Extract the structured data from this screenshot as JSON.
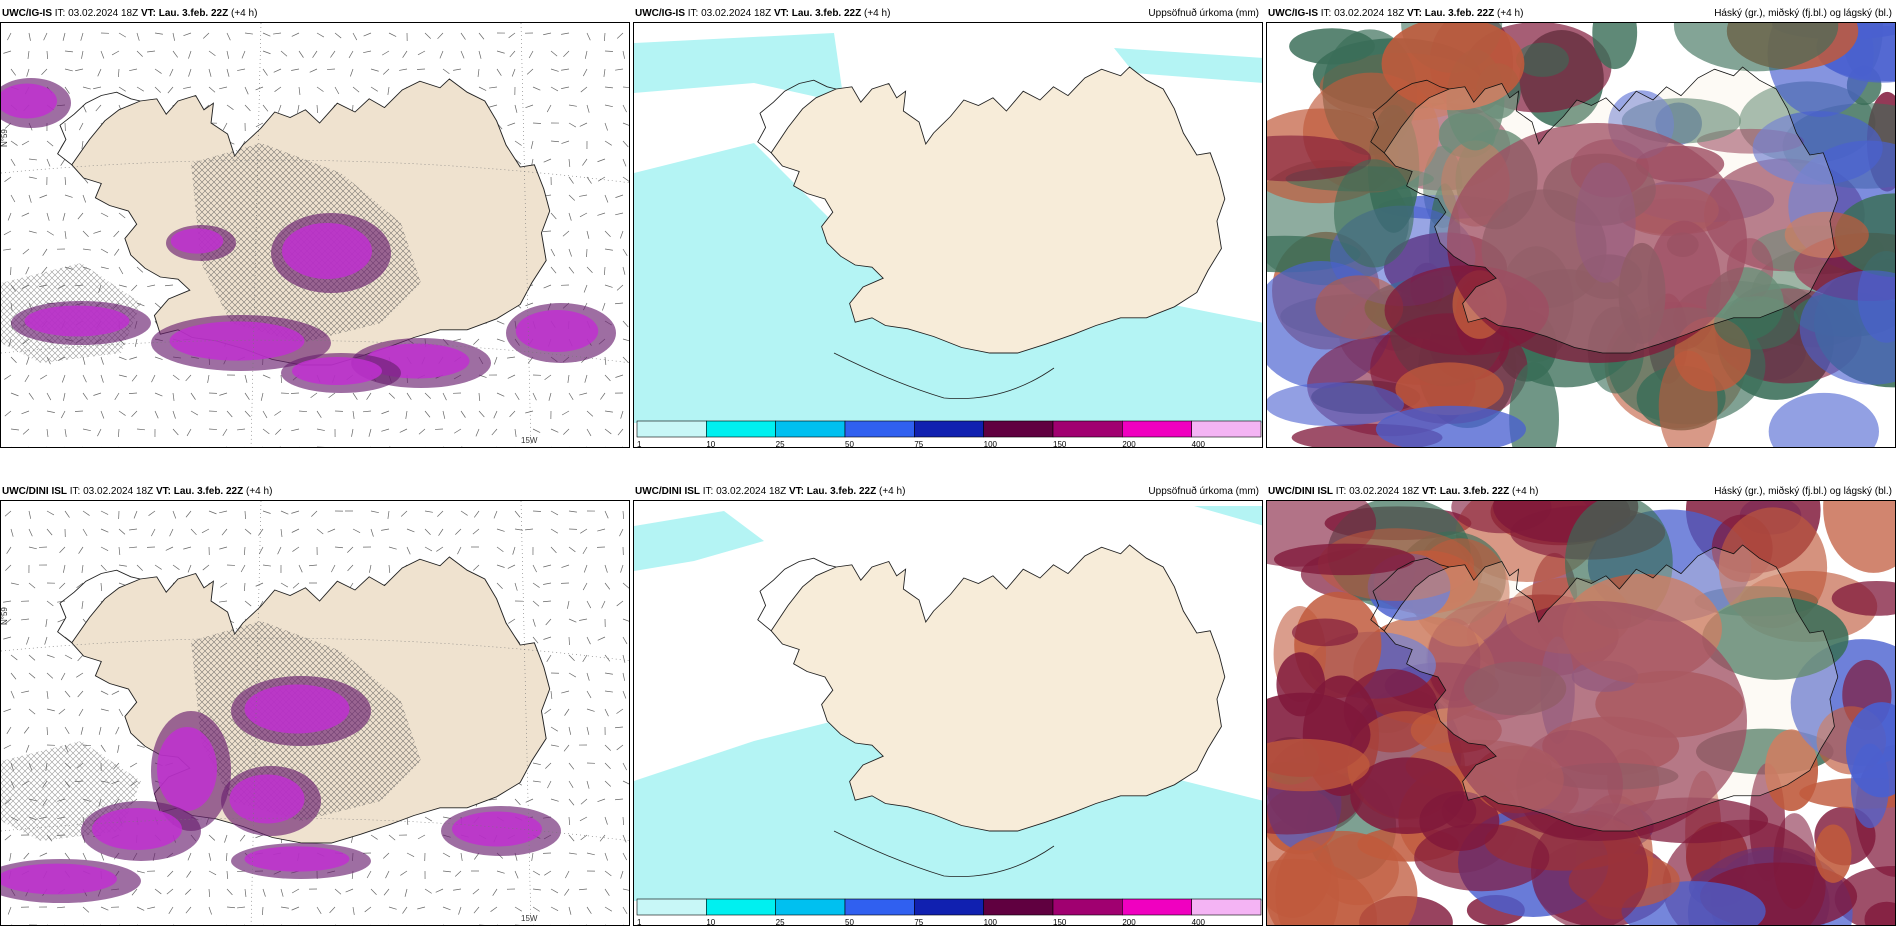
{
  "panels": [
    {
      "model": "UWC/IG-IS",
      "it_label": "IT:",
      "it_value": "03.02.2024 18Z",
      "vt_label": "VT:",
      "vt_value": "Lau. 3.feb. 22Z",
      "lead": "(+4 h)",
      "right_title": "",
      "type": "wind"
    },
    {
      "model": "UWC/IG-IS",
      "it_label": "IT:",
      "it_value": "03.02.2024 18Z",
      "vt_label": "VT:",
      "vt_value": "Lau. 3.feb. 22Z",
      "lead": "(+4 h)",
      "right_title": "Uppsöfnuð úrkoma (mm)",
      "type": "precip"
    },
    {
      "model": "UWC/IG-IS",
      "it_label": "IT:",
      "it_value": "03.02.2024 18Z",
      "vt_label": "VT:",
      "vt_value": "Lau. 3.feb. 22Z",
      "lead": "(+4 h)",
      "right_title": "Háský (gr.), miðský (fj.bl.) og lágský (bl.)",
      "type": "cloud"
    },
    {
      "model": "UWC/DINI ISL",
      "it_label": "IT:",
      "it_value": "03.02.2024 18Z",
      "vt_label": "VT:",
      "vt_value": "Lau. 3.feb. 22Z",
      "lead": "(+4 h)",
      "right_title": "",
      "type": "wind"
    },
    {
      "model": "UWC/DINI ISL",
      "it_label": "IT:",
      "it_value": "03.02.2024 18Z",
      "vt_label": "VT:",
      "vt_value": "Lau. 3.feb. 22Z",
      "lead": "(+4 h)",
      "right_title": "Uppsöfnuð úrkoma (mm)",
      "type": "precip"
    },
    {
      "model": "UWC/DINI ISL",
      "it_label": "IT:",
      "it_value": "03.02.2024 18Z",
      "vt_label": "VT:",
      "vt_value": "Lau. 3.feb. 22Z",
      "lead": "(+4 h)",
      "right_title": "Háský (gr.), miðský (fj.bl.) og lágský (bl.)",
      "type": "cloud"
    }
  ],
  "grid_labels": {
    "lat": "N°59",
    "lon": "15W"
  },
  "colorbar": {
    "labels": [
      "1",
      "10",
      "25",
      "50",
      "75",
      "100",
      "150",
      "200",
      "400"
    ],
    "colors": [
      "#c8f7f7",
      "#00f0f0",
      "#00c0f0",
      "#3060f0",
      "#1020b0",
      "#600040",
      "#a00070",
      "#f000c0",
      "#f4b4f4"
    ]
  },
  "colors": {
    "land": "#f7ecd9",
    "land_wind": "#efe2cf",
    "sea_precip": "#b4f4f4",
    "precip_purple": "#c030d0",
    "precip_dark": "#6a2070",
    "cloud_green": "#3a6e58",
    "cloud_maroon": "#80183a",
    "cloud_rust": "#c05a3c",
    "cloud_blue": "#4a60d0"
  }
}
